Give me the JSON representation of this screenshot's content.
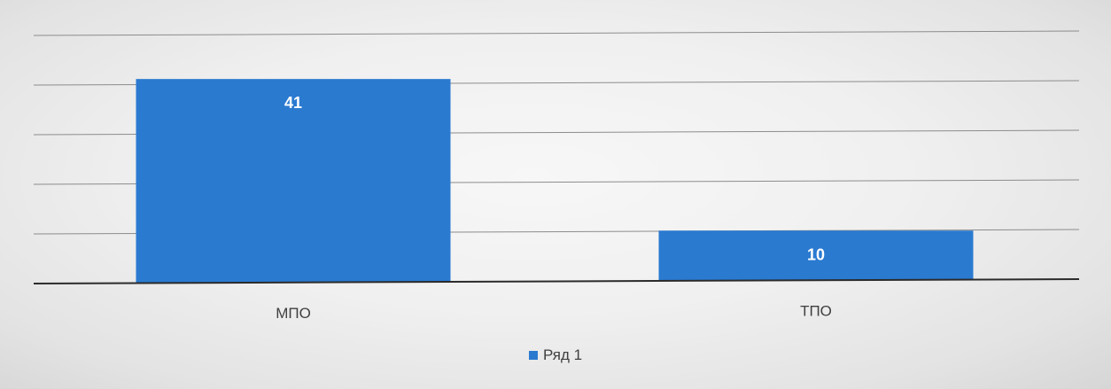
{
  "chart_data": {
    "type": "bar",
    "categories": [
      "МПО",
      "ТПО"
    ],
    "series": [
      {
        "name": "Ряд 1",
        "values": [
          41,
          10
        ],
        "color": "#2a7ad0"
      }
    ],
    "ylim": [
      0,
      50
    ],
    "grid": true,
    "legend_position": "bottom",
    "data_labels": true
  }
}
